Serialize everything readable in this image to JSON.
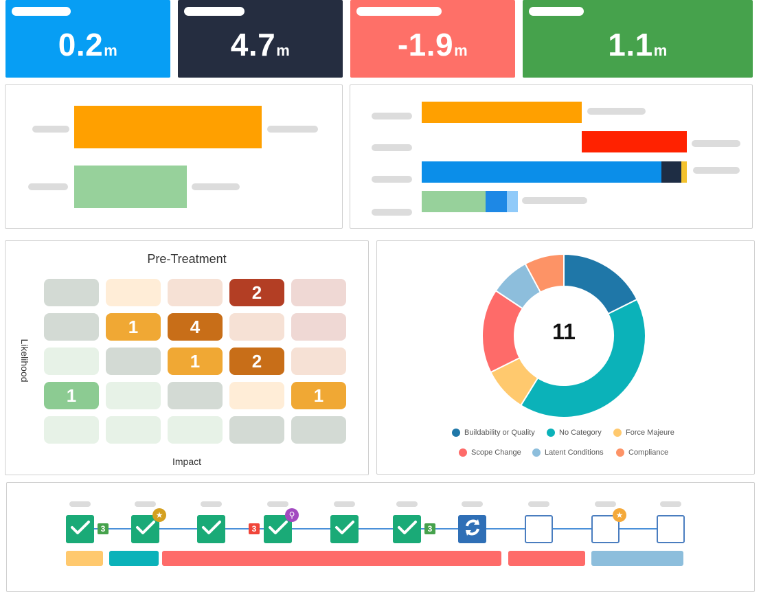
{
  "kpis": [
    {
      "value": "0.2",
      "unit": "m",
      "color": "#079ef4"
    },
    {
      "value": "4.7",
      "unit": "m",
      "color": "#252d40"
    },
    {
      "value": "-1.9",
      "unit": "m",
      "color": "#fe7068"
    },
    {
      "value": "1.1",
      "unit": "m",
      "color": "#46a24c"
    }
  ],
  "risk_matrix": {
    "title": "Pre-Treatment",
    "y_label": "Likelihood",
    "x_label": "Impact",
    "rows": [
      [
        {
          "count": "",
          "color": "#d3dad4"
        },
        {
          "count": "",
          "color": "#ffedd7"
        },
        {
          "count": "",
          "color": "#f6e1d5"
        },
        {
          "count": "2",
          "color": "#b33e24"
        },
        {
          "count": "",
          "color": "#efd8d4"
        }
      ],
      [
        {
          "count": "",
          "color": "#d3dad4"
        },
        {
          "count": "1",
          "color": "#f0a834"
        },
        {
          "count": "4",
          "color": "#c86e18"
        },
        {
          "count": "",
          "color": "#f6e1d5"
        },
        {
          "count": "",
          "color": "#efd8d4"
        }
      ],
      [
        {
          "count": "",
          "color": "#e7f2e7"
        },
        {
          "count": "",
          "color": "#d3dad4"
        },
        {
          "count": "1",
          "color": "#f0a834"
        },
        {
          "count": "2",
          "color": "#c86e18"
        },
        {
          "count": "",
          "color": "#f6e1d5"
        }
      ],
      [
        {
          "count": "1",
          "color": "#8ccb92"
        },
        {
          "count": "",
          "color": "#e7f2e7"
        },
        {
          "count": "",
          "color": "#d3dad4"
        },
        {
          "count": "",
          "color": "#ffedd7"
        },
        {
          "count": "1",
          "color": "#f0a834"
        }
      ],
      [
        {
          "count": "",
          "color": "#e7f2e7"
        },
        {
          "count": "",
          "color": "#e7f2e7"
        },
        {
          "count": "",
          "color": "#e7f2e7"
        },
        {
          "count": "",
          "color": "#d3dad4"
        },
        {
          "count": "",
          "color": "#d3dad4"
        }
      ]
    ]
  },
  "chart_data": {
    "type": "pie",
    "donut": true,
    "center_label": "11",
    "categories": [
      "Buildability or Quality",
      "No Category",
      "Force Majeure",
      "Scope Change",
      "Latent Conditions",
      "Compliance"
    ],
    "values": [
      18,
      42,
      9,
      17,
      8,
      8
    ],
    "colors": [
      "#1f77a8",
      "#0bb2b9",
      "#ffc96e",
      "#fe6b69",
      "#8dbedc",
      "#fd9366"
    ],
    "legend": "bottom"
  },
  "timeline": {
    "steps": [
      {
        "state": "done",
        "badge": "3",
        "badge_color": "#46a24c",
        "icon": ""
      },
      {
        "state": "done",
        "badge": "",
        "badge_color": "",
        "icon": "trophy-icon",
        "icon_color": "#d4a020"
      },
      {
        "state": "done",
        "badge": "",
        "badge_color": "",
        "icon": ""
      },
      {
        "state": "done",
        "badge": "3",
        "badge_color": "#f0453a",
        "badge_side": "left",
        "icon": "key-icon",
        "icon_color": "#a24ac0"
      },
      {
        "state": "done",
        "badge": "",
        "badge_color": "",
        "icon": ""
      },
      {
        "state": "done",
        "badge": "3",
        "badge_color": "#46a24c",
        "icon": ""
      },
      {
        "state": "active",
        "badge": "",
        "badge_color": "",
        "icon": "refresh-icon"
      },
      {
        "state": "todo",
        "badge": "",
        "badge_color": "",
        "icon": ""
      },
      {
        "state": "todo",
        "badge": "",
        "badge_color": "",
        "icon": "star-icon",
        "icon_color": "#f4a93a"
      },
      {
        "state": "todo",
        "badge": "",
        "badge_color": "",
        "icon": ""
      }
    ],
    "phases": [
      {
        "color": "#ffc96e"
      },
      {
        "color": "#0bb2b9"
      },
      {
        "color": "#fe6b69"
      },
      {
        "color": "#fe6b69"
      },
      {
        "color": "#8dbedc"
      }
    ]
  },
  "bar_panel_left": {
    "bars": [
      {
        "color": "#ffa000"
      },
      {
        "color": "#97d19b"
      }
    ]
  },
  "bar_panel_right": {
    "rows": [
      {
        "segments": [
          {
            "color": "#ffa000"
          }
        ]
      },
      {
        "segments": [
          {
            "color": "#ff2200"
          }
        ]
      },
      {
        "segments": [
          {
            "color": "#0b8ee9"
          },
          {
            "color": "#1e2d44"
          },
          {
            "color": "#f3c22e"
          }
        ]
      },
      {
        "segments": [
          {
            "color": "#97d19b"
          },
          {
            "color": "#1e88e5"
          },
          {
            "color": "#90caf9"
          }
        ]
      }
    ]
  }
}
